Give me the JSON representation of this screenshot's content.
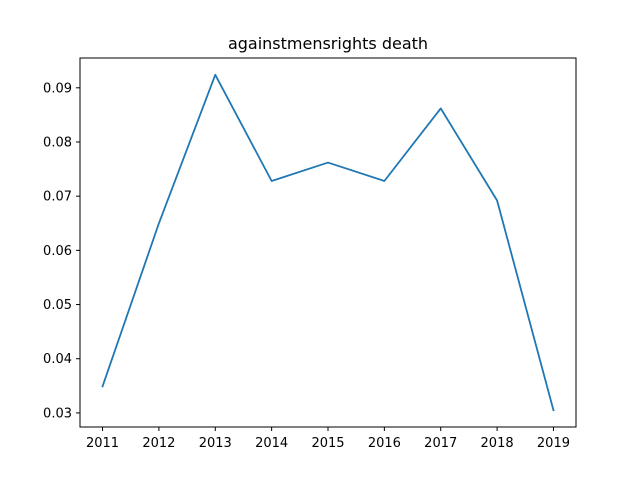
{
  "chart_data": {
    "type": "line",
    "title": "againstmensrights death",
    "xlabel": "",
    "ylabel": "",
    "x": [
      2011,
      2012,
      2013,
      2014,
      2015,
      2016,
      2017,
      2018,
      2019
    ],
    "series": [
      {
        "values": [
          0.0349,
          0.065,
          0.0924,
          0.0728,
          0.0762,
          0.0728,
          0.0862,
          0.0692,
          0.0305
        ],
        "color": "#1f77b4"
      }
    ],
    "xticks": [
      "2011",
      "2012",
      "2013",
      "2014",
      "2015",
      "2016",
      "2017",
      "2018",
      "2019"
    ],
    "yticks": [
      "0.03",
      "0.04",
      "0.05",
      "0.06",
      "0.07",
      "0.08",
      "0.09"
    ],
    "xlim": [
      2010.6,
      2019.4
    ],
    "ylim": [
      0.0274,
      0.0955
    ],
    "grid": false,
    "legend": "none"
  }
}
